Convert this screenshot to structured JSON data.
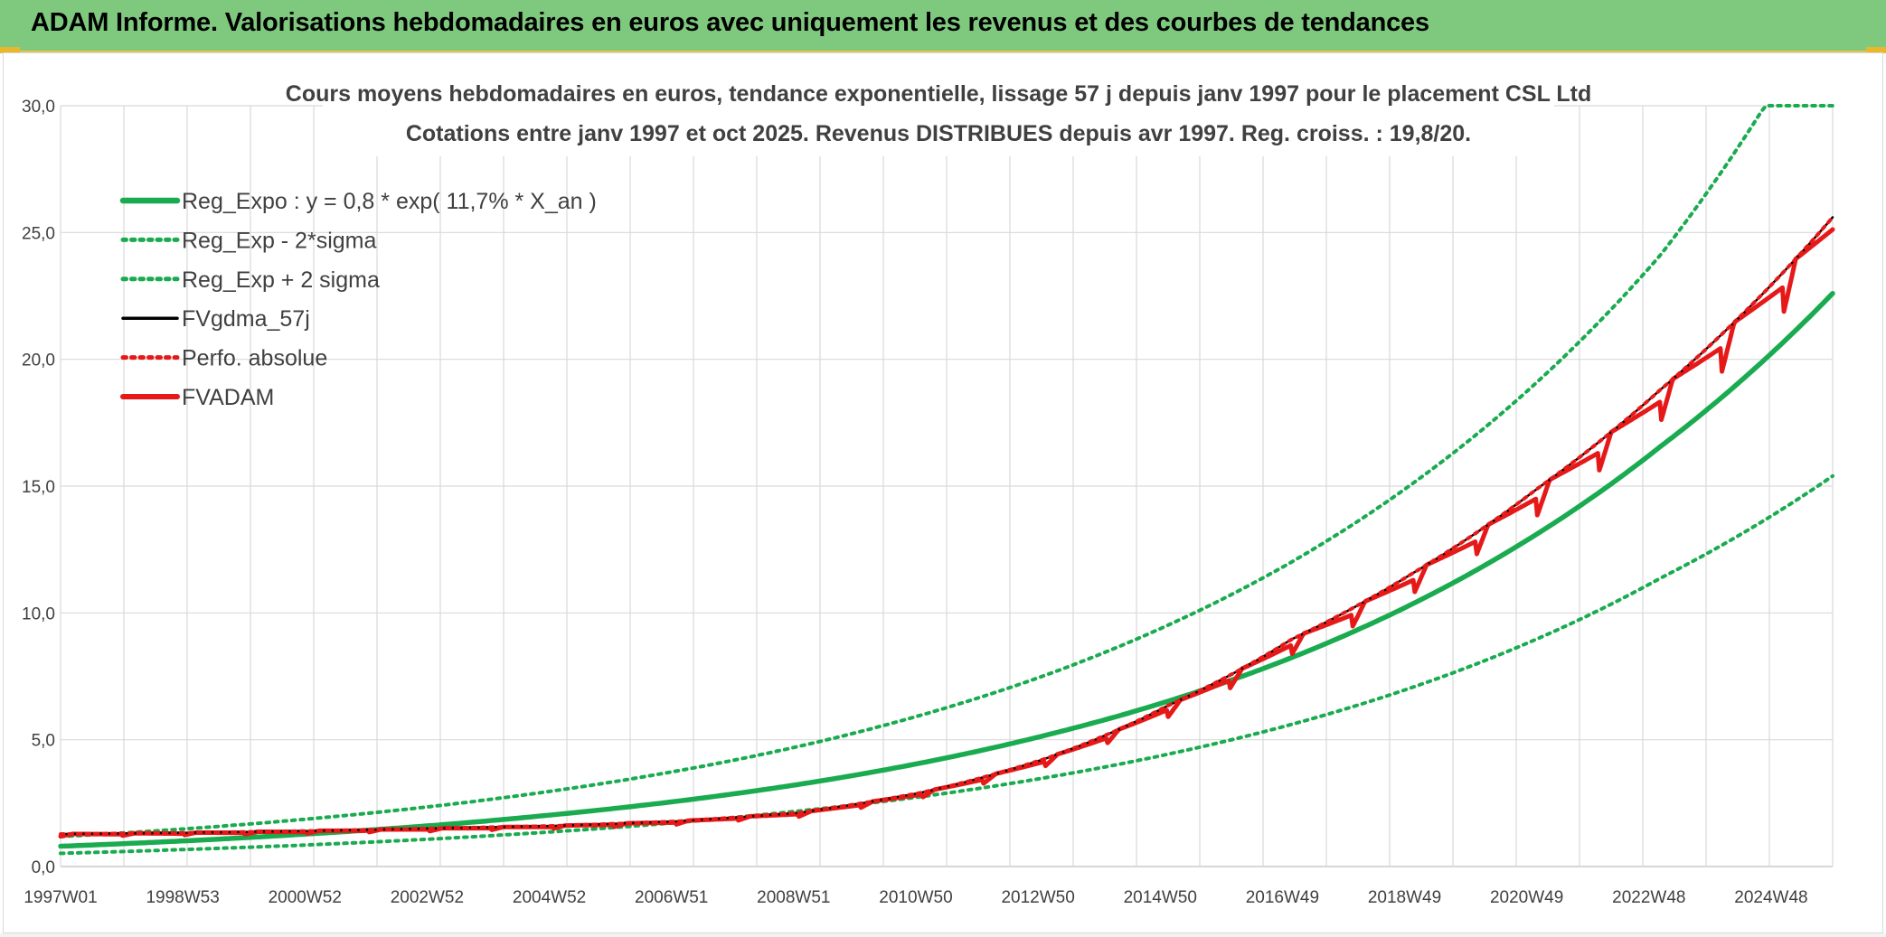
{
  "banner": {
    "title": "ADAM Informe. Valorisations hebdomadaires en euros avec uniquement les revenus et des courbes de tendances"
  },
  "chart_data": {
    "type": "line",
    "title": "Cours moyens hebdomadaires en euros, tendance exponentielle, lissage 57 j depuis janv 1997 pour le placement CSL Ltd",
    "subtitle": "Cotations entre janv 1997 et oct 2025. Revenus DISTRIBUES depuis avr 1997. Reg. croiss. : 19,8/20.",
    "xlabel": "",
    "ylabel": "",
    "ylim": [
      0,
      30
    ],
    "y_ticks": [
      "0,0",
      "5,0",
      "10,0",
      "15,0",
      "20,0",
      "25,0",
      "30,0"
    ],
    "x_ticks": [
      "1997W01",
      "1998W53",
      "2000W52",
      "2002W52",
      "2004W52",
      "2006W51",
      "2008W51",
      "2010W50",
      "2012W50",
      "2014W50",
      "2016W49",
      "2018W49",
      "2020W49",
      "2022W48",
      "2024W48"
    ],
    "x_range": [
      "1997W01",
      "2025W43"
    ],
    "grid": true,
    "legend_position": "top-left",
    "series": [
      {
        "name": "Reg_Expo : y = 0,8 * exp( 11,7% *  X_an )",
        "color": "#1aab50",
        "style": "solid-thick",
        "x": [
          "1997",
          "1999",
          "2001",
          "2003",
          "2005",
          "2007",
          "2009",
          "2011",
          "2013",
          "2015",
          "2017",
          "2019",
          "2021",
          "2023",
          "2025.8"
        ],
        "values": [
          0.8,
          1.01,
          1.28,
          1.61,
          2.04,
          2.57,
          3.24,
          4.09,
          5.17,
          6.52,
          8.23,
          10.39,
          13.12,
          16.56,
          22.6
        ]
      },
      {
        "name": "Reg_Exp - 2*sigma",
        "color": "#1aab50",
        "style": "dotted",
        "x": [
          "1997",
          "1999",
          "2001",
          "2003",
          "2005",
          "2007",
          "2009",
          "2011",
          "2013",
          "2015",
          "2017",
          "2019",
          "2021",
          "2023",
          "2025.8"
        ],
        "values": [
          0.52,
          0.67,
          0.85,
          1.08,
          1.37,
          1.73,
          2.19,
          2.76,
          3.5,
          4.43,
          5.6,
          7.09,
          8.98,
          11.37,
          15.4
        ]
      },
      {
        "name": "Reg_Exp + 2 sigma",
        "color": "#1aab50",
        "style": "dotted",
        "x": [
          "1997",
          "1999",
          "2001",
          "2003",
          "2005",
          "2007",
          "2009",
          "2011",
          "2013",
          "2015",
          "2017",
          "2019",
          "2021",
          "2023",
          "2024.7",
          "2025.8"
        ],
        "values": [
          1.18,
          1.48,
          1.87,
          2.36,
          2.98,
          3.76,
          4.74,
          5.98,
          7.54,
          9.52,
          12.0,
          15.15,
          19.11,
          24.11,
          30.0,
          30.0
        ]
      },
      {
        "name": "FVgdma_57j",
        "color": "#000000",
        "style": "solid",
        "x": [
          "1997",
          "1999",
          "2001",
          "2003",
          "2005",
          "2007",
          "2009",
          "2011",
          "2013",
          "2015",
          "2017",
          "2019",
          "2021",
          "2023",
          "2025.8"
        ],
        "values": [
          1.28,
          1.33,
          1.4,
          1.5,
          1.6,
          1.78,
          2.12,
          2.92,
          4.25,
          6.35,
          8.95,
          11.6,
          14.9,
          18.8,
          25.6
        ]
      },
      {
        "name": "Perfo. absolue",
        "color": "#e61919",
        "style": "dotted",
        "x": [
          "1997",
          "1999",
          "2001",
          "2003",
          "2005",
          "2007",
          "2009",
          "2011",
          "2013",
          "2015",
          "2017",
          "2019",
          "2021",
          "2023",
          "2025.8"
        ],
        "values": [
          1.28,
          1.33,
          1.4,
          1.5,
          1.6,
          1.78,
          2.12,
          2.92,
          4.25,
          6.35,
          8.95,
          11.6,
          14.9,
          18.8,
          25.6
        ]
      },
      {
        "name": "FVADAM",
        "color": "#e61919",
        "style": "solid-thick-stepped",
        "x": [
          "1997",
          "1999",
          "2001",
          "2003",
          "2005",
          "2007",
          "2009",
          "2011",
          "2013",
          "2015",
          "2017",
          "2019",
          "2021",
          "2023",
          "2025.8"
        ],
        "values": [
          1.28,
          1.33,
          1.4,
          1.5,
          1.6,
          1.78,
          2.12,
          2.92,
          4.25,
          6.35,
          8.95,
          11.6,
          14.9,
          18.8,
          25.6
        ]
      }
    ]
  }
}
